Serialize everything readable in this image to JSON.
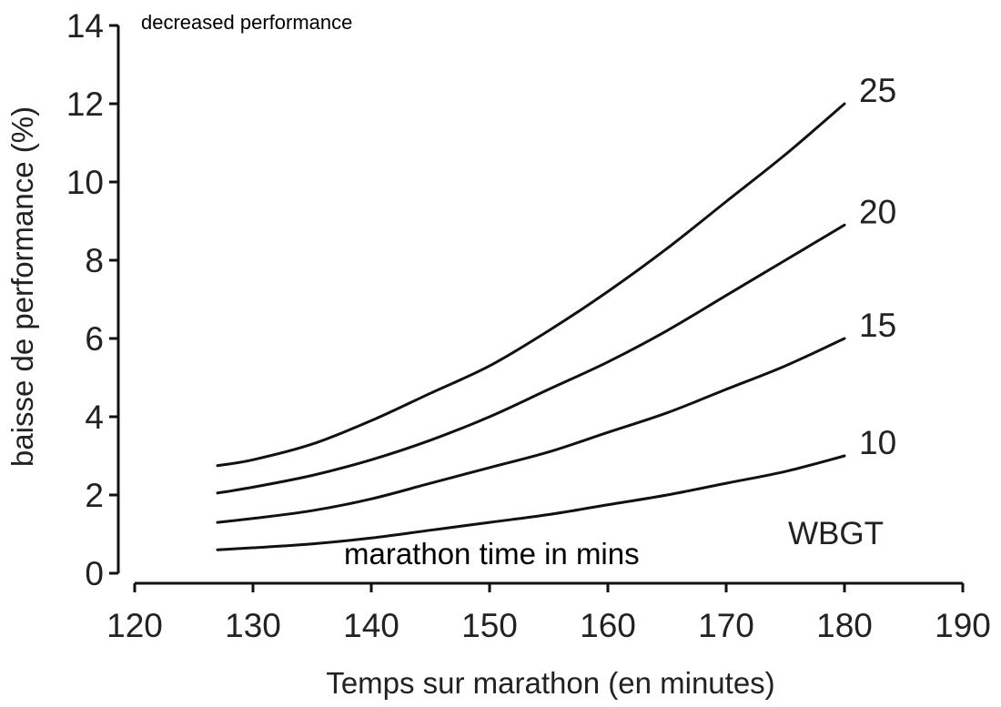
{
  "chart_data": {
    "type": "line",
    "xlabel": "Temps sur marathon (en minutes)",
    "ylabel": "baisse de performance (%)",
    "xlim": [
      120,
      190
    ],
    "ylim": [
      0,
      14
    ],
    "x_ticks": [
      120,
      130,
      140,
      150,
      160,
      170,
      180,
      190
    ],
    "y_ticks": [
      0,
      2,
      4,
      6,
      8,
      10,
      12,
      14
    ],
    "grid": false,
    "legend_title": "WBGT",
    "x": [
      127,
      130,
      135,
      140,
      145,
      150,
      155,
      160,
      165,
      170,
      175,
      180
    ],
    "series": [
      {
        "name": "10",
        "values": [
          0.6,
          0.65,
          0.75,
          0.9,
          1.1,
          1.3,
          1.5,
          1.75,
          2.0,
          2.3,
          2.6,
          3.0
        ]
      },
      {
        "name": "15",
        "values": [
          1.3,
          1.4,
          1.6,
          1.9,
          2.3,
          2.7,
          3.1,
          3.6,
          4.1,
          4.7,
          5.3,
          6.0
        ]
      },
      {
        "name": "20",
        "values": [
          2.05,
          2.2,
          2.5,
          2.9,
          3.4,
          4.0,
          4.7,
          5.4,
          6.2,
          7.1,
          8.0,
          8.9
        ]
      },
      {
        "name": "25",
        "values": [
          2.75,
          2.9,
          3.3,
          3.9,
          4.6,
          5.3,
          6.2,
          7.2,
          8.3,
          9.5,
          10.7,
          12.0
        ]
      }
    ],
    "annotations": {
      "top": "decreased performance",
      "middle": "marathon time in mins"
    }
  }
}
